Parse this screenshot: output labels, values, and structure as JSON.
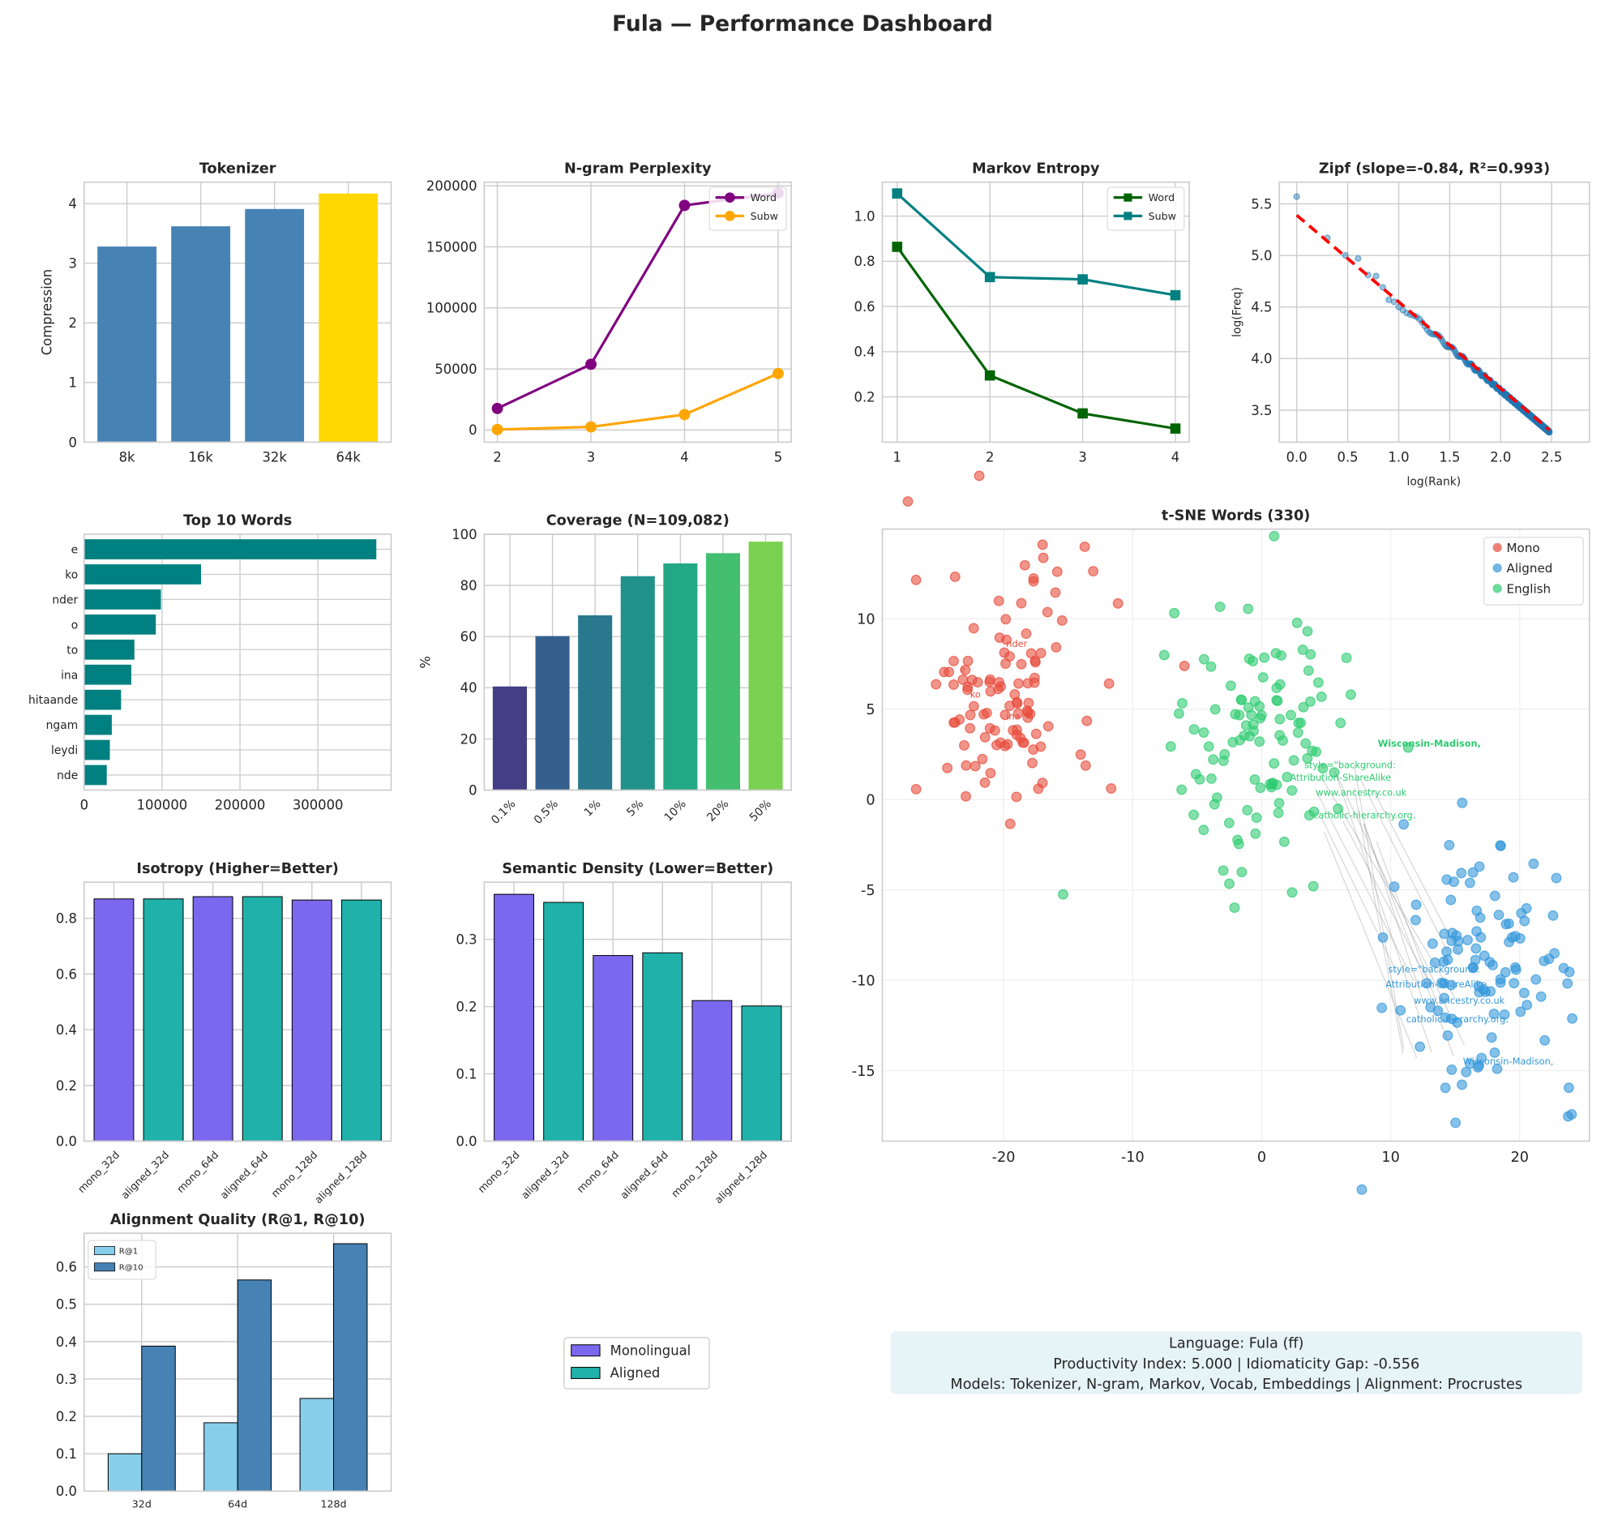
{
  "title": "Fula — Performance Dashboard",
  "colors": {
    "bar_blue": "#4682b4",
    "bar_gold": "#ffd700",
    "word": "#800080",
    "subw": "#ffa500",
    "markov_word": "#006400",
    "markov_subw": "#008080",
    "zipf_points": "#1f77b4",
    "zipf_fit": "#ff0000",
    "teal": "#008080",
    "mono": "#7b68ee",
    "aligned": "#20b2aa",
    "r1": "#87ceeb",
    "r10": "#4682b4",
    "tsne_mono": "#e74c3c",
    "tsne_aligned": "#3498db",
    "tsne_english": "#2ecc71",
    "grid": "#cccccc"
  },
  "chart_data": [
    {
      "id": "tokenizer",
      "type": "bar",
      "title": "Tokenizer",
      "xlabel": "",
      "ylabel": "Compression",
      "categories": [
        "8k",
        "16k",
        "32k",
        "64k"
      ],
      "values": [
        3.28,
        3.62,
        3.91,
        4.17
      ],
      "highlight": "64k",
      "ylim": [
        0,
        4.36
      ],
      "yticks": [
        "0",
        "1",
        "2",
        "3",
        "4"
      ],
      "grid": true
    },
    {
      "id": "ngram",
      "type": "line",
      "title": "N-gram Perplexity",
      "x": [
        2,
        3,
        4,
        5
      ],
      "xticks": [
        "2",
        "3",
        "4",
        "5"
      ],
      "xlim": [
        1.86,
        5.14
      ],
      "ylim": [
        -10000,
        203000
      ],
      "yticks": [
        "0",
        "50000",
        "100000",
        "150000",
        "200000"
      ],
      "series": [
        {
          "name": "Word",
          "values": [
            17600,
            53800,
            184000,
            194000
          ]
        },
        {
          "name": "Subw",
          "values": [
            300,
            2500,
            12600,
            46200
          ]
        }
      ],
      "legend": "top-right",
      "grid": true
    },
    {
      "id": "markov",
      "type": "line",
      "title": "Markov Entropy",
      "x": [
        1,
        2,
        3,
        4
      ],
      "xticks": [
        "1",
        "2",
        "3",
        "4"
      ],
      "xlim": [
        0.84,
        4.15
      ],
      "ylim": [
        0.0,
        1.15
      ],
      "yticks": [
        "0.2",
        "0.4",
        "0.6",
        "0.8",
        "1.0"
      ],
      "series": [
        {
          "name": "Word",
          "values": [
            0.864,
            0.295,
            0.127,
            0.06
          ]
        },
        {
          "name": "Subw",
          "values": [
            1.1,
            0.73,
            0.72,
            0.65
          ]
        }
      ],
      "legend": "top-right",
      "grid": true
    },
    {
      "id": "zipf",
      "type": "scatter",
      "title": "Zipf (slope=-0.84, R²=0.993)",
      "xlabel": "log(Rank)",
      "ylabel": "log(Freq)",
      "xlim": [
        -0.17,
        2.87
      ],
      "ylim": [
        3.19,
        5.71
      ],
      "xticks": [
        "0.0",
        "0.5",
        "1.0",
        "1.5",
        "2.0",
        "2.5"
      ],
      "yticks": [
        "3.5",
        "4.0",
        "4.5",
        "5.0",
        "5.5"
      ],
      "top_points": {
        "x": [
          0,
          0.301,
          0.477,
          0.602,
          0.699,
          0.778,
          0.845,
          0.903,
          0.954,
          1.0
        ],
        "y": [
          5.57,
          5.17,
          5.0,
          4.97,
          4.81,
          4.8,
          4.69,
          4.57,
          4.55,
          4.5
        ]
      },
      "fit": {
        "slope": -0.84,
        "intercept": 5.39,
        "x_range": [
          0,
          2.48
        ]
      },
      "grid": true
    },
    {
      "id": "top_words",
      "type": "bar",
      "orientation": "horizontal",
      "title": "Top 10 Words",
      "categories": [
        "e",
        "ko",
        "nder",
        "o",
        "to",
        "ina",
        "hitaande",
        "ngam",
        "leydi",
        "nde"
      ],
      "values": [
        375000,
        150000,
        98500,
        92000,
        64500,
        60500,
        47400,
        35500,
        33000,
        29000
      ],
      "xlim": [
        0,
        394000
      ],
      "xticks": [
        "0",
        "100000",
        "200000",
        "300000"
      ],
      "grid": true
    },
    {
      "id": "coverage",
      "type": "bar",
      "title": "Coverage (N=109,082)",
      "ylabel": "%",
      "categories": [
        "0.1%",
        "0.5%",
        "1%",
        "5%",
        "10%",
        "20%",
        "50%"
      ],
      "values": [
        40.5,
        60.2,
        68.3,
        83.6,
        88.6,
        92.6,
        97.1
      ],
      "bar_colors": [
        "#433e85",
        "#355f8d",
        "#2a788e",
        "#21918c",
        "#22a884",
        "#44bf70",
        "#7ad151"
      ],
      "ylim": [
        0,
        100
      ],
      "yticks": [
        "0",
        "20",
        "40",
        "60",
        "80",
        "100"
      ],
      "grid": true
    },
    {
      "id": "tsne",
      "type": "scatter",
      "title": "t-SNE Words (330)",
      "xlim": [
        -29.4,
        25.4
      ],
      "ylim": [
        -18.9,
        14.96
      ],
      "xticks": [
        "-20",
        "-10",
        "0",
        "10",
        "20"
      ],
      "yticks": [
        "-15",
        "-10",
        "-5",
        "0",
        "5",
        "10"
      ],
      "series": [
        {
          "name": "Mono",
          "center": [
            -20,
            6
          ]
        },
        {
          "name": "Aligned",
          "center": [
            17.5,
            -9
          ]
        },
        {
          "name": "English",
          "center": [
            0,
            3.5
          ]
        }
      ],
      "annotations": [
        {
          "text": "Wisconsin-Madison,",
          "series": "English",
          "x": 9,
          "y": 3.1,
          "bold": true
        },
        {
          "text": "style=\"background:",
          "series": "English",
          "x": 3.3,
          "y": 1.9
        },
        {
          "text": "Attribution-ShareAlike",
          "series": "English",
          "x": 2.2,
          "y": 1.2
        },
        {
          "text": "www.ancestry.co.uk",
          "series": "English",
          "x": 4.2,
          "y": 1.0
        },
        {
          "text": "catholic-hierarchy.org.",
          "series": "English",
          "x": 4.0,
          "y": 1.0
        },
        {
          "text": "style=\"background:",
          "series": "Aligned",
          "x": 9.8,
          "y": -9.4
        },
        {
          "text": "Attribution-ShareAlike",
          "series": "Aligned",
          "x": 9.6,
          "y": -9.6
        },
        {
          "text": "www.ancestry.co.uk",
          "series": "Aligned",
          "x": 11.8,
          "y": -10.5
        },
        {
          "text": "catholic-hierarchy.org.",
          "series": "Aligned",
          "x": 11.2,
          "y": -10.9
        },
        {
          "text": "Wisconsin-Madison,",
          "series": "Aligned",
          "x": 15.6,
          "y": -14.5
        },
        {
          "text": "nder",
          "series": "Mono",
          "x": -19.8,
          "y": 8.6
        },
        {
          "text": "e",
          "series": "Mono",
          "x": -23.4,
          "y": 7.2
        },
        {
          "text": "ko",
          "series": "Mono",
          "x": -22.6,
          "y": 5.8
        },
        {
          "text": "ina",
          "series": "Mono",
          "x": -19.8,
          "y": 4.6
        }
      ],
      "legend": "top-right",
      "grid": true
    },
    {
      "id": "isotropy",
      "type": "bar",
      "title": "Isotropy (Higher=Better)",
      "categories": [
        "mono_32d",
        "aligned_32d",
        "mono_64d",
        "aligned_64d",
        "mono_128d",
        "aligned_128d"
      ],
      "values": [
        0.87,
        0.87,
        0.878,
        0.878,
        0.866,
        0.866
      ],
      "ylim": [
        0,
        0.93
      ],
      "yticks": [
        "0.0",
        "0.2",
        "0.4",
        "0.6",
        "0.8"
      ],
      "grid": true
    },
    {
      "id": "semantic_density",
      "type": "bar",
      "title": "Semantic Density (Lower=Better)",
      "categories": [
        "mono_32d",
        "aligned_32d",
        "mono_64d",
        "aligned_64d",
        "mono_128d",
        "aligned_128d"
      ],
      "values": [
        0.367,
        0.355,
        0.276,
        0.28,
        0.209,
        0.201
      ],
      "ylim": [
        0,
        0.385
      ],
      "yticks": [
        "0.0",
        "0.1",
        "0.2",
        "0.3"
      ],
      "grid": true
    },
    {
      "id": "alignment",
      "type": "bar",
      "title": "Alignment Quality (R@1, R@10)",
      "categories": [
        "32d",
        "64d",
        "128d"
      ],
      "series": [
        {
          "name": "R@1",
          "values": [
            0.1,
            0.183,
            0.248
          ]
        },
        {
          "name": "R@10",
          "values": [
            0.388,
            0.565,
            0.662
          ]
        }
      ],
      "ylim": [
        0,
        0.69
      ],
      "yticks": [
        "0.0",
        "0.1",
        "0.2",
        "0.3",
        "0.4",
        "0.5",
        "0.6"
      ],
      "legend": "top-left",
      "grid": true
    }
  ],
  "figure_legend": {
    "items": [
      {
        "label": "Monolingual",
        "color": "#7b68ee"
      },
      {
        "label": "Aligned",
        "color": "#20b2aa"
      }
    ]
  },
  "info_box": {
    "lines": [
      "Language: Fula (ff)",
      "Productivity Index: 5.000  |  Idiomaticity Gap: -0.556",
      "Models: Tokenizer, N-gram, Markov, Vocab, Embeddings  |  Alignment: Procrustes"
    ]
  }
}
